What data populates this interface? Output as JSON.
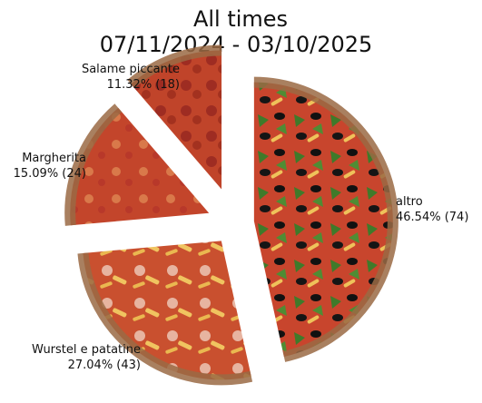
{
  "chart_data": {
    "type": "pie",
    "title": "All times",
    "subtitle": "07/11/2024 - 03/10/2025",
    "slices": [
      {
        "label": "altro",
        "value": 74,
        "pct_label": "46.54% (74)"
      },
      {
        "label": "Wurstel e patatine",
        "value": 43,
        "pct_label": "27.04% (43)"
      },
      {
        "label": "Margherita",
        "value": 24,
        "pct_label": "15.09% (24)"
      },
      {
        "label": "Salame piccante",
        "value": 18,
        "pct_label": "11.32% (18)"
      }
    ],
    "start": "top",
    "direction": "clockwise",
    "exploded": true,
    "slice_fill": "pizza-photo"
  }
}
